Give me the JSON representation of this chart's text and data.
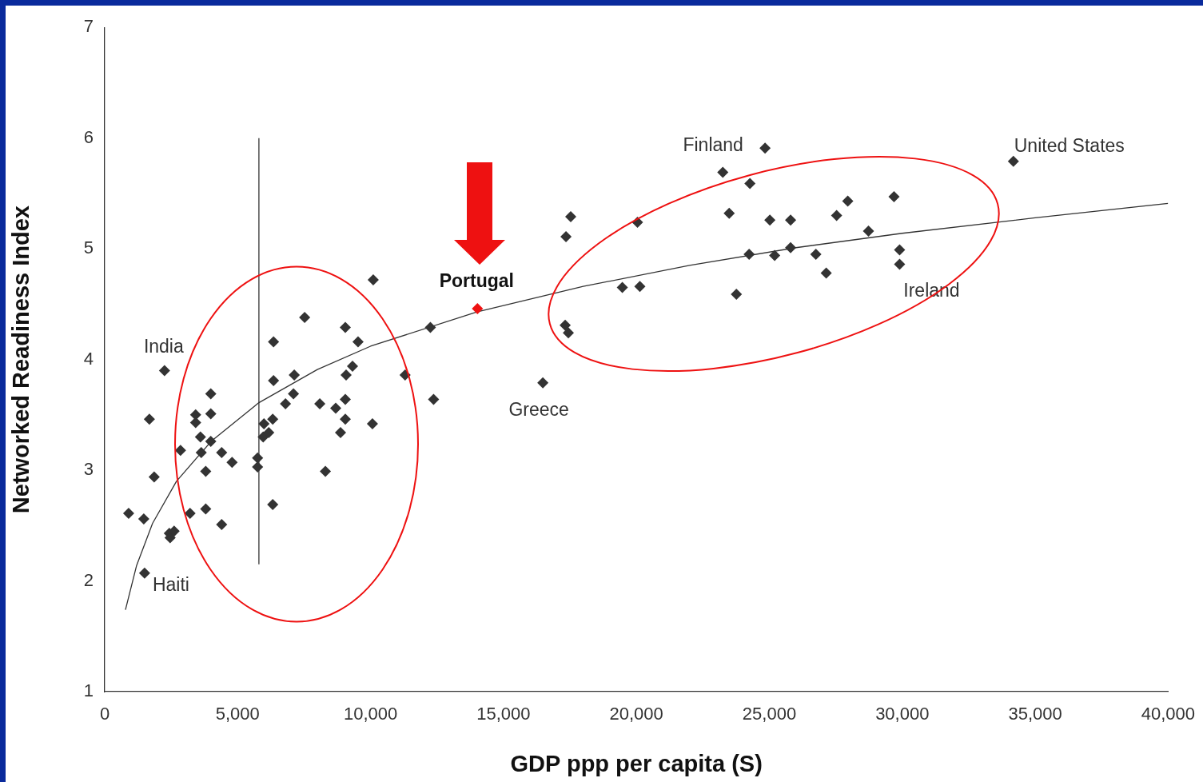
{
  "chart_data": {
    "type": "scatter",
    "xlabel": "GDP ppp per capita (S)",
    "ylabel": "Networked Readiness Index",
    "xlim": [
      0,
      40000
    ],
    "xticks": [
      {
        "value": 0,
        "label": "0"
      },
      {
        "value": 5000,
        "label": "5,000"
      },
      {
        "value": 10000,
        "label": "10,000"
      },
      {
        "value": 15000,
        "label": "15,000"
      },
      {
        "value": 20000,
        "label": "20,000"
      },
      {
        "value": 25000,
        "label": "25,000"
      },
      {
        "value": 30000,
        "label": "30,000"
      },
      {
        "value": 35000,
        "label": "35,000"
      },
      {
        "value": 40000,
        "label": "40,000"
      }
    ],
    "ylim": [
      1,
      7
    ],
    "yticks": [
      1,
      2,
      3,
      4,
      5,
      6,
      7
    ],
    "grid": false,
    "legend": false,
    "marker": "diamond",
    "series": [
      {
        "color": "#333333",
        "x": [
          900,
          1470,
          1500,
          1680,
          1860,
          2250,
          2430,
          2460,
          2610,
          2850,
          3210,
          3420,
          3420,
          3600,
          3630,
          3800,
          3800,
          3990,
          3990,
          3990,
          4400,
          4400,
          4790,
          5750,
          5750,
          5960,
          5990,
          6170,
          6320,
          6320,
          6350,
          6350,
          6800,
          7100,
          7130,
          7520,
          8090,
          8300,
          8690,
          8870,
          9050,
          9050,
          9050,
          9080,
          9320,
          9530,
          10070,
          10100,
          11300,
          12250,
          12370,
          16480,
          17320,
          17350,
          17440,
          17530,
          19470,
          20040,
          20130,
          23250,
          23490,
          23760,
          24240,
          24270,
          24840,
          25020,
          25200,
          25800,
          25800,
          26750,
          27140,
          27530,
          27950,
          28730,
          29690,
          29900,
          29900,
          34180
        ],
        "values": [
          2.61,
          2.56,
          2.07,
          3.46,
          2.94,
          3.9,
          2.43,
          2.39,
          2.45,
          3.18,
          2.61,
          3.5,
          3.43,
          3.3,
          3.16,
          2.99,
          2.65,
          3.69,
          3.51,
          3.26,
          3.16,
          2.51,
          3.07,
          3.11,
          3.03,
          3.3,
          3.42,
          3.34,
          3.46,
          2.69,
          4.16,
          3.81,
          3.6,
          3.69,
          3.86,
          4.38,
          3.6,
          2.99,
          3.56,
          3.34,
          4.29,
          3.64,
          3.46,
          3.86,
          3.94,
          4.16,
          3.42,
          4.72,
          3.86,
          4.29,
          3.64,
          3.79,
          4.31,
          5.11,
          4.24,
          5.29,
          4.65,
          5.24,
          4.66,
          5.69,
          5.32,
          4.59,
          4.95,
          5.59,
          5.91,
          5.26,
          4.94,
          5.26,
          5.01,
          4.95,
          4.78,
          5.3,
          5.43,
          5.16,
          5.47,
          4.99,
          4.86,
          5.79
        ]
      },
      {
        "color": "#ee1111",
        "x": [
          14020
        ],
        "values": [
          4.46
        ]
      },
      {
        "type": "line",
        "color": "#333333",
        "marker": "none",
        "x": [
          780,
          1200,
          1800,
          2700,
          4000,
          5800,
          8000,
          10000,
          14000,
          18000,
          22000,
          26000,
          30000,
          35000,
          40000
        ],
        "values": [
          1.74,
          2.14,
          2.52,
          2.9,
          3.26,
          3.61,
          3.91,
          4.12,
          4.43,
          4.66,
          4.85,
          5.01,
          5.14,
          5.28,
          5.41
        ]
      },
      {
        "type": "line",
        "color": "#333333",
        "marker": "none",
        "x": [
          5800,
          5800
        ],
        "values": [
          2.15,
          6.0
        ]
      }
    ],
    "annotations": [
      {
        "text": "Finland",
        "x": 24840,
        "y": 5.91
      },
      {
        "text": "United States",
        "x": 34180,
        "y": 5.79
      },
      {
        "text": "India",
        "x": 2250,
        "y": 3.9
      },
      {
        "text": "Haiti",
        "x": 1500,
        "y": 2.07
      },
      {
        "text": "Greece",
        "x": 16480,
        "y": 3.79
      },
      {
        "text": "Ireland",
        "x": 29900,
        "y": 4.86
      },
      {
        "text": "Portugal",
        "x": 14020,
        "y": 4.46
      }
    ]
  }
}
